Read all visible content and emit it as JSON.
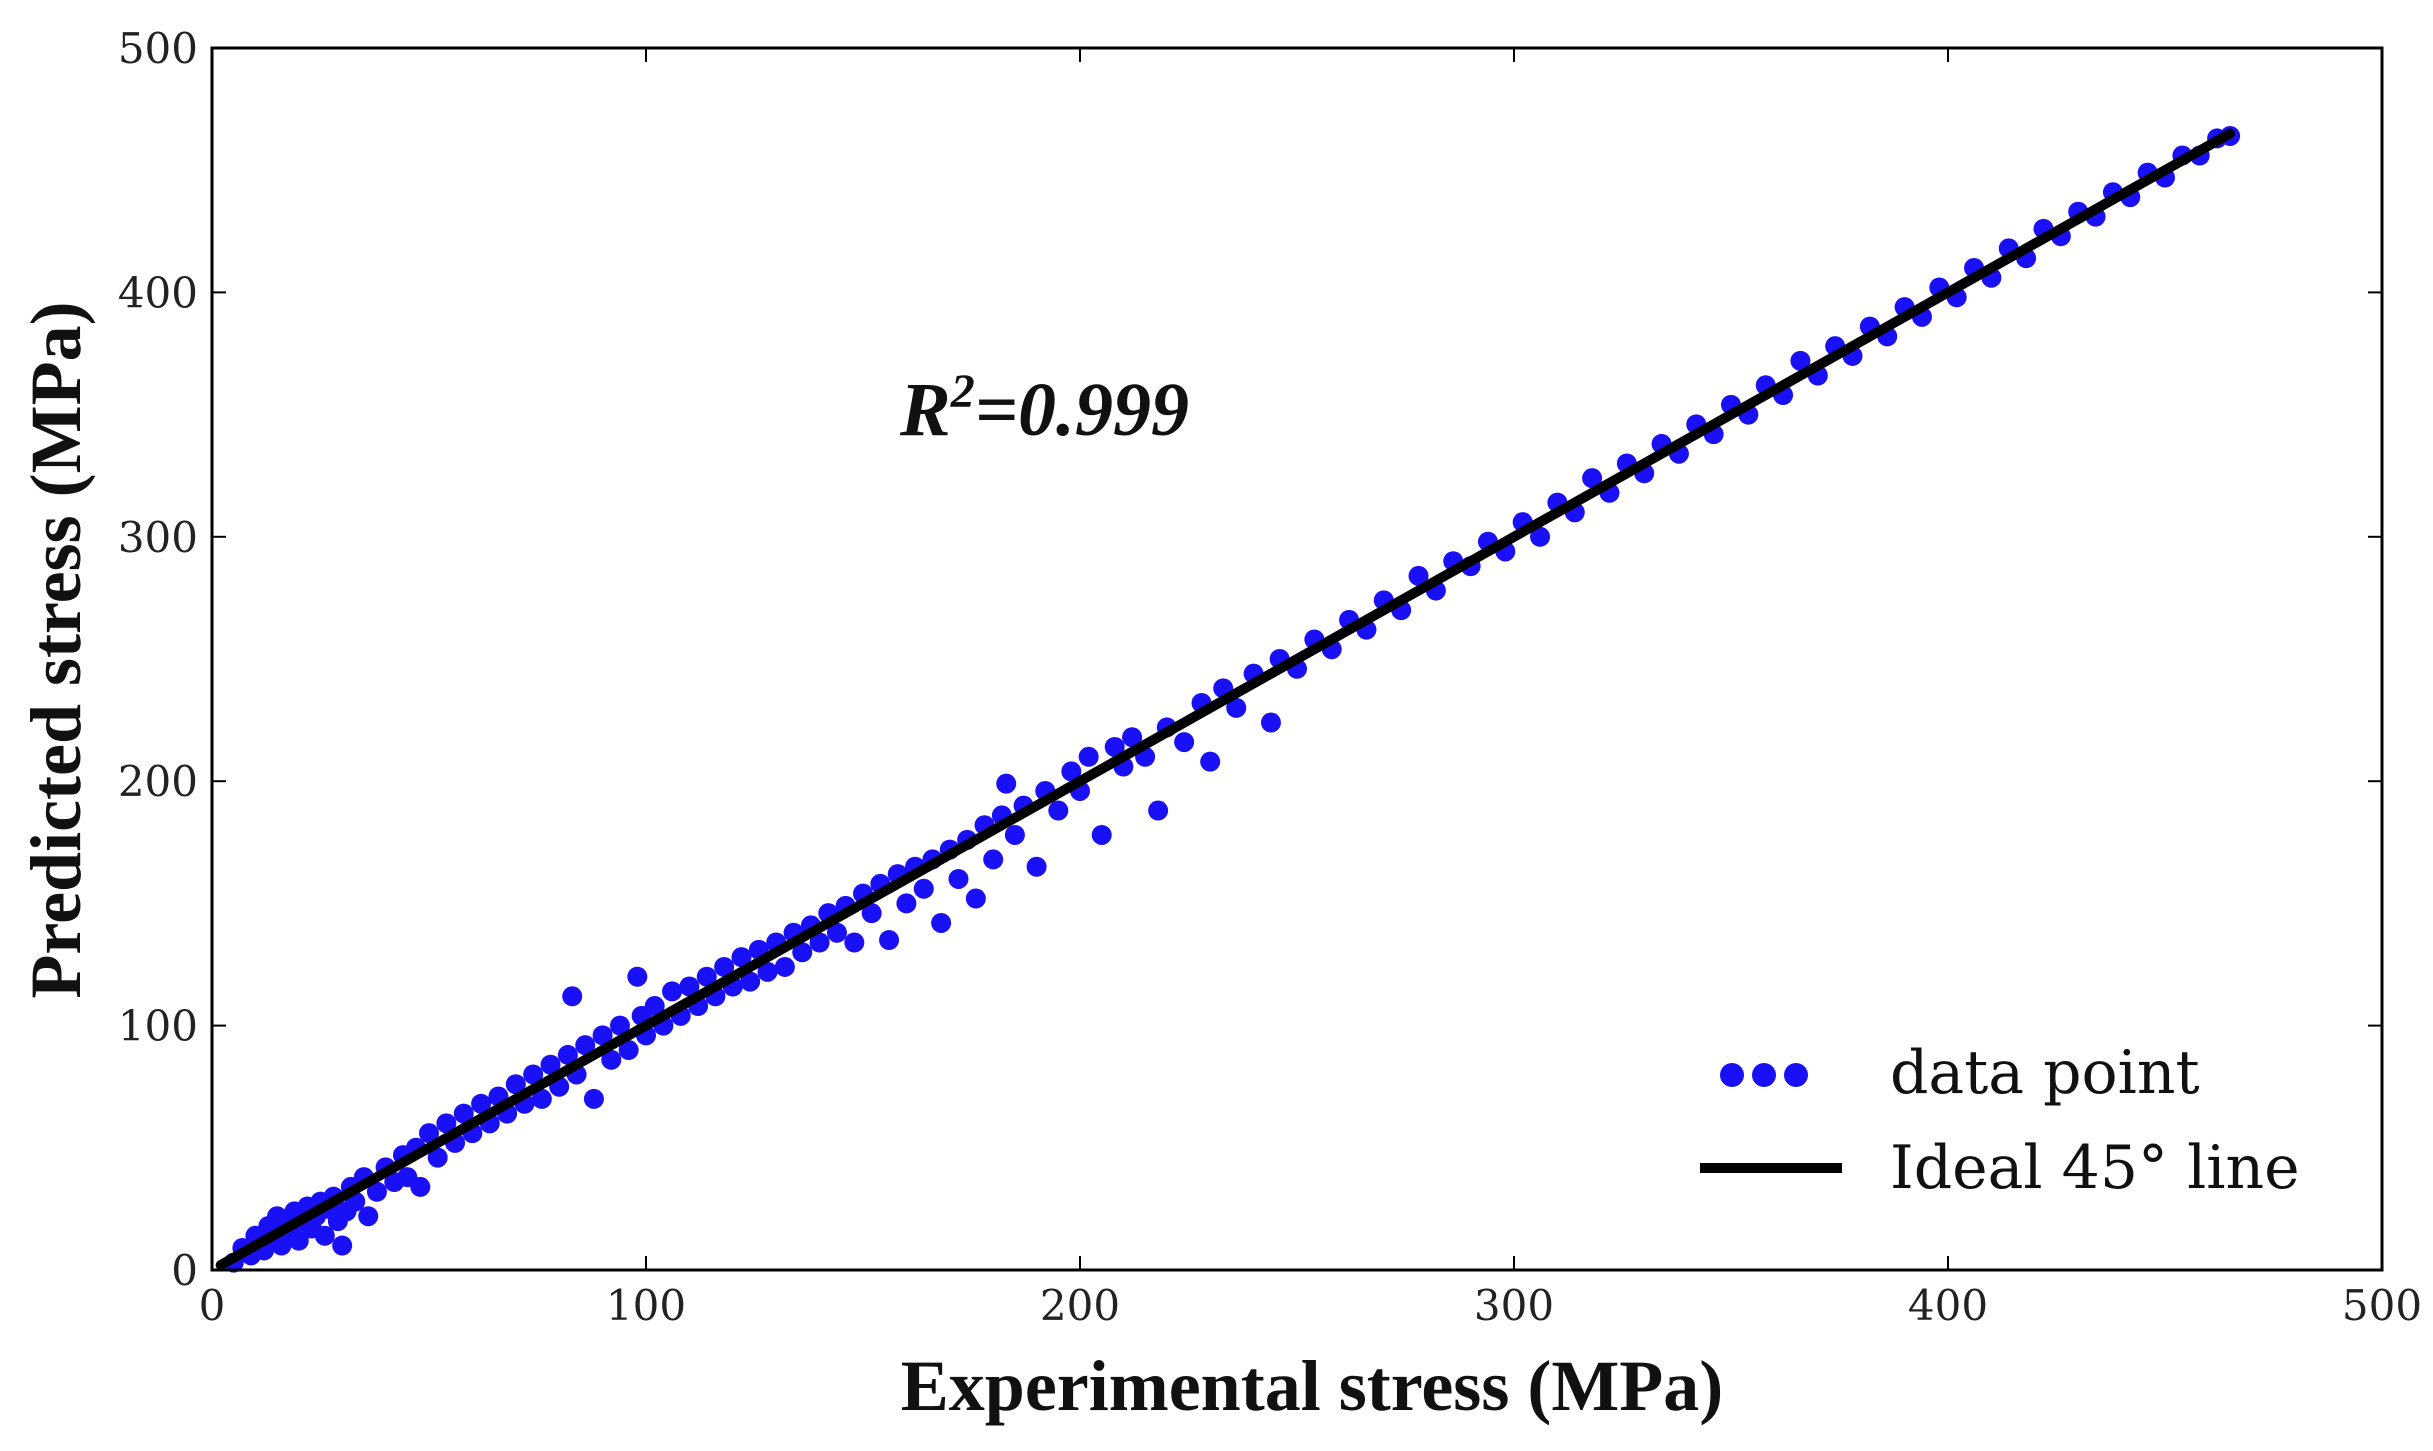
{
  "chart_data": {
    "type": "scatter",
    "title": "",
    "xlabel": "Experimental stress (MPa)",
    "ylabel": "Predicted stress (MPa)",
    "xlim": [
      0,
      500
    ],
    "ylim": [
      0,
      500
    ],
    "xticks": [
      "0",
      "100",
      "200",
      "300",
      "400",
      "500"
    ],
    "yticks": [
      "0",
      "100",
      "200",
      "300",
      "400",
      "500"
    ],
    "grid": false,
    "annotation": {
      "prefix": "R",
      "superscript": "2",
      "suffix": "=0.999"
    },
    "legend": {
      "position": "bottom-right",
      "entries": [
        {
          "label": "data point",
          "kind": "marker"
        },
        {
          "label": "Ideal 45° line",
          "kind": "line"
        }
      ]
    },
    "ideal_line": {
      "name": "Ideal 45° line",
      "x": [
        2,
        465
      ],
      "y": [
        2,
        465
      ],
      "color": "#000000"
    },
    "series": [
      {
        "name": "data point",
        "color": "#1a10f5",
        "points": [
          [
            5,
            3
          ],
          [
            7,
            9
          ],
          [
            9,
            6
          ],
          [
            10,
            14
          ],
          [
            12,
            8
          ],
          [
            13,
            18
          ],
          [
            14,
            12
          ],
          [
            15,
            22
          ],
          [
            16,
            10
          ],
          [
            17,
            19
          ],
          [
            18,
            15
          ],
          [
            19,
            24
          ],
          [
            20,
            12
          ],
          [
            21,
            20
          ],
          [
            22,
            26
          ],
          [
            23,
            17
          ],
          [
            24,
            22
          ],
          [
            25,
            28
          ],
          [
            26,
            14
          ],
          [
            27,
            25
          ],
          [
            28,
            30
          ],
          [
            29,
            20
          ],
          [
            30,
            10
          ],
          [
            31,
            24
          ],
          [
            32,
            34
          ],
          [
            33,
            28
          ],
          [
            35,
            38
          ],
          [
            36,
            22
          ],
          [
            38,
            32
          ],
          [
            40,
            42
          ],
          [
            42,
            36
          ],
          [
            44,
            47
          ],
          [
            45,
            38
          ],
          [
            47,
            50
          ],
          [
            48,
            34
          ],
          [
            50,
            56
          ],
          [
            52,
            46
          ],
          [
            54,
            60
          ],
          [
            56,
            52
          ],
          [
            58,
            64
          ],
          [
            60,
            56
          ],
          [
            62,
            68
          ],
          [
            64,
            60
          ],
          [
            66,
            71
          ],
          [
            68,
            64
          ],
          [
            70,
            76
          ],
          [
            72,
            68
          ],
          [
            74,
            80
          ],
          [
            76,
            70
          ],
          [
            78,
            84
          ],
          [
            80,
            75
          ],
          [
            82,
            88
          ],
          [
            83,
            112
          ],
          [
            84,
            80
          ],
          [
            86,
            92
          ],
          [
            88,
            70
          ],
          [
            90,
            96
          ],
          [
            92,
            86
          ],
          [
            94,
            100
          ],
          [
            96,
            90
          ],
          [
            98,
            120
          ],
          [
            99,
            104
          ],
          [
            100,
            96
          ],
          [
            102,
            108
          ],
          [
            104,
            100
          ],
          [
            106,
            114
          ],
          [
            108,
            104
          ],
          [
            110,
            116
          ],
          [
            112,
            108
          ],
          [
            114,
            120
          ],
          [
            116,
            112
          ],
          [
            118,
            124
          ],
          [
            120,
            116
          ],
          [
            122,
            128
          ],
          [
            124,
            118
          ],
          [
            126,
            131
          ],
          [
            128,
            122
          ],
          [
            130,
            134
          ],
          [
            132,
            124
          ],
          [
            134,
            138
          ],
          [
            136,
            130
          ],
          [
            138,
            141
          ],
          [
            140,
            134
          ],
          [
            142,
            146
          ],
          [
            144,
            138
          ],
          [
            146,
            149
          ],
          [
            148,
            134
          ],
          [
            150,
            154
          ],
          [
            152,
            146
          ],
          [
            154,
            158
          ],
          [
            156,
            135
          ],
          [
            158,
            162
          ],
          [
            160,
            150
          ],
          [
            162,
            165
          ],
          [
            164,
            156
          ],
          [
            166,
            168
          ],
          [
            168,
            142
          ],
          [
            170,
            172
          ],
          [
            172,
            160
          ],
          [
            174,
            176
          ],
          [
            176,
            152
          ],
          [
            178,
            182
          ],
          [
            180,
            168
          ],
          [
            182,
            186
          ],
          [
            183,
            199
          ],
          [
            185,
            178
          ],
          [
            187,
            190
          ],
          [
            190,
            165
          ],
          [
            192,
            196
          ],
          [
            195,
            188
          ],
          [
            198,
            204
          ],
          [
            200,
            196
          ],
          [
            202,
            210
          ],
          [
            205,
            178
          ],
          [
            208,
            214
          ],
          [
            210,
            206
          ],
          [
            212,
            218
          ],
          [
            215,
            210
          ],
          [
            218,
            188
          ],
          [
            220,
            222
          ],
          [
            224,
            216
          ],
          [
            228,
            232
          ],
          [
            230,
            208
          ],
          [
            233,
            238
          ],
          [
            236,
            230
          ],
          [
            240,
            244
          ],
          [
            244,
            224
          ],
          [
            246,
            250
          ],
          [
            250,
            246
          ],
          [
            254,
            258
          ],
          [
            258,
            254
          ],
          [
            262,
            266
          ],
          [
            266,
            262
          ],
          [
            270,
            274
          ],
          [
            274,
            270
          ],
          [
            278,
            284
          ],
          [
            282,
            278
          ],
          [
            286,
            290
          ],
          [
            290,
            288
          ],
          [
            294,
            298
          ],
          [
            298,
            294
          ],
          [
            302,
            306
          ],
          [
            306,
            300
          ],
          [
            310,
            314
          ],
          [
            314,
            310
          ],
          [
            318,
            324
          ],
          [
            322,
            318
          ],
          [
            326,
            330
          ],
          [
            330,
            326
          ],
          [
            334,
            338
          ],
          [
            338,
            334
          ],
          [
            342,
            346
          ],
          [
            346,
            342
          ],
          [
            350,
            354
          ],
          [
            354,
            350
          ],
          [
            358,
            362
          ],
          [
            362,
            358
          ],
          [
            366,
            372
          ],
          [
            370,
            366
          ],
          [
            374,
            378
          ],
          [
            378,
            374
          ],
          [
            382,
            386
          ],
          [
            386,
            382
          ],
          [
            390,
            394
          ],
          [
            394,
            390
          ],
          [
            398,
            402
          ],
          [
            402,
            398
          ],
          [
            406,
            410
          ],
          [
            410,
            406
          ],
          [
            414,
            418
          ],
          [
            418,
            414
          ],
          [
            422,
            426
          ],
          [
            426,
            423
          ],
          [
            430,
            433
          ],
          [
            434,
            431
          ],
          [
            438,
            441
          ],
          [
            442,
            439
          ],
          [
            446,
            449
          ],
          [
            450,
            447
          ],
          [
            454,
            456
          ],
          [
            458,
            456
          ],
          [
            462,
            463
          ],
          [
            465,
            464
          ]
        ]
      }
    ]
  }
}
